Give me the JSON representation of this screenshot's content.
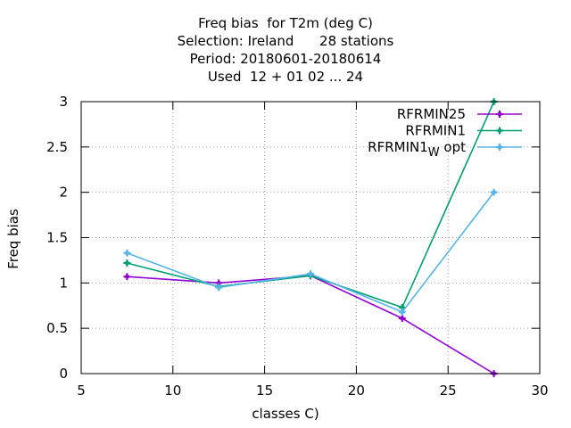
{
  "chart_data": {
    "type": "line",
    "title_lines": [
      "Freq bias  for T2m (deg C)",
      "Selection: Ireland      28 stations",
      "Period: 20180601-20180614",
      "Used  12 + 01 02 ... 24"
    ],
    "xlabel": "classes C)",
    "ylabel": "Freq bias",
    "xlim": [
      5,
      30
    ],
    "ylim": [
      0,
      3
    ],
    "xticks": [
      5,
      10,
      15,
      20,
      25,
      30
    ],
    "yticks": [
      0,
      0.5,
      1,
      1.5,
      2,
      2.5,
      3
    ],
    "ytick_labels": [
      "0",
      "0.5",
      "1",
      "1.5",
      "2",
      "2.5",
      "3"
    ],
    "grid": true,
    "legend_position": "top-right",
    "x": [
      7.5,
      12.5,
      17.5,
      22.5,
      27.5
    ],
    "series": [
      {
        "name": "RFRMIN25",
        "color": "#9400d3",
        "values": [
          1.07,
          1.0,
          1.08,
          0.61,
          0.0
        ]
      },
      {
        "name": "RFRMIN1",
        "color": "#009e73",
        "values": [
          1.22,
          0.96,
          1.08,
          0.73,
          3.0
        ]
      },
      {
        "name": "RFRMIN1",
        "name_sub": "W",
        "name_suffix": " opt",
        "color": "#56b4e9",
        "values": [
          1.33,
          0.95,
          1.1,
          0.68,
          2.0
        ]
      }
    ]
  }
}
